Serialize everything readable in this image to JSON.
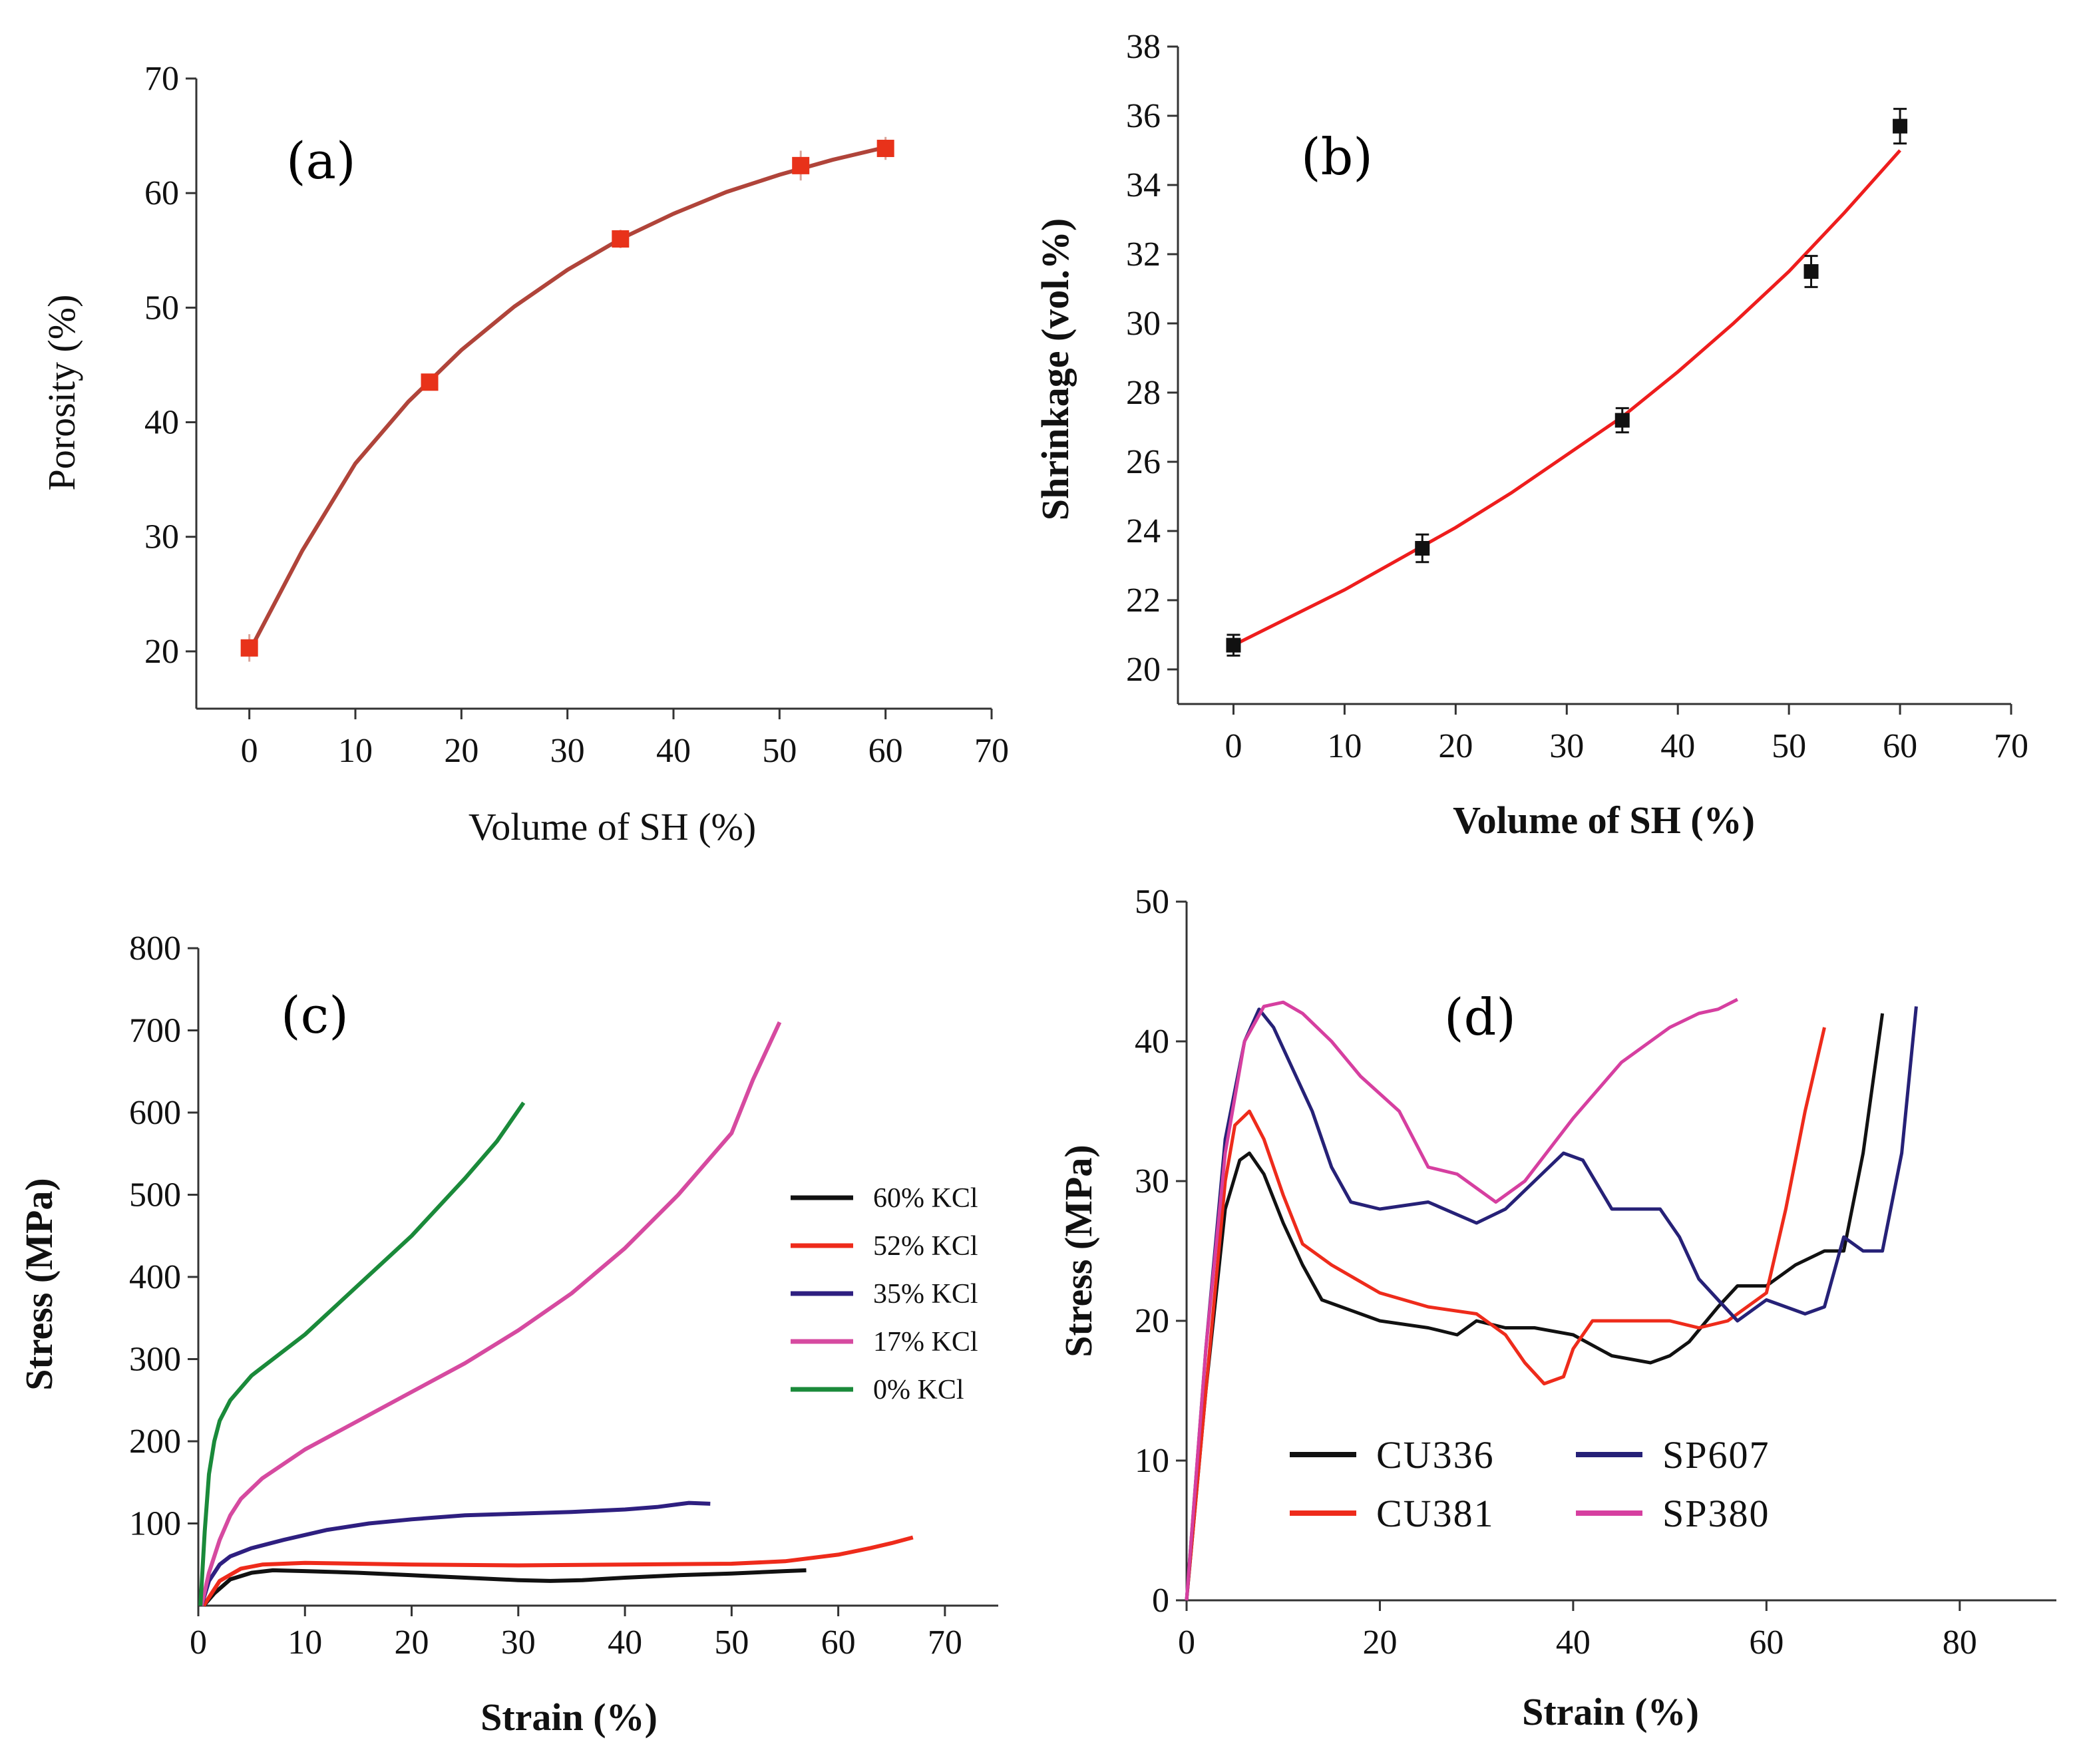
{
  "chart_data": [
    {
      "id": "a",
      "type": "scatter",
      "panel_label": "(a)",
      "xlabel": "Volume of SH (%)",
      "ylabel": "Porosity (%)",
      "xlim": [
        -5,
        70
      ],
      "ylim": [
        15,
        70
      ],
      "xticks": [
        0,
        10,
        20,
        30,
        40,
        50,
        60,
        70
      ],
      "yticks": [
        20,
        30,
        40,
        50,
        60,
        70
      ],
      "series": [
        {
          "name": "Porosity",
          "color": "#e8321a",
          "fit_color": "#b0443a",
          "marker": "square",
          "x": [
            0,
            17,
            35,
            52,
            60
          ],
          "y": [
            20.3,
            43.5,
            56.0,
            62.4,
            63.9
          ],
          "err": [
            1.2,
            0.6,
            0.8,
            1.3,
            1.0
          ],
          "fit_x": [
            0,
            5,
            10,
            15,
            20,
            25,
            30,
            35,
            40,
            45,
            50,
            55,
            60
          ],
          "fit_y": [
            20.0,
            28.8,
            36.4,
            41.8,
            46.3,
            50.1,
            53.3,
            56.0,
            58.2,
            60.1,
            61.6,
            62.9,
            64.0
          ]
        }
      ]
    },
    {
      "id": "b",
      "type": "scatter",
      "panel_label": "(b)",
      "xlabel": "Volume of SH (%)",
      "ylabel": "Shrinkage  (vol.%)",
      "xlim": [
        -5,
        70
      ],
      "ylim": [
        19,
        38
      ],
      "xticks": [
        0,
        10,
        20,
        30,
        40,
        50,
        60,
        70
      ],
      "yticks": [
        20,
        22,
        24,
        26,
        28,
        30,
        32,
        34,
        36,
        38
      ],
      "series": [
        {
          "name": "Shrinkage",
          "color": "#111111",
          "fit_color": "#ee1d1d",
          "marker": "square",
          "x": [
            0,
            17,
            35,
            52,
            60
          ],
          "y": [
            20.7,
            23.5,
            27.2,
            31.5,
            35.7
          ],
          "err": [
            0.3,
            0.4,
            0.35,
            0.45,
            0.5
          ],
          "fit_x": [
            0,
            5,
            10,
            15,
            20,
            25,
            30,
            35,
            40,
            45,
            50,
            55,
            60
          ],
          "fit_y": [
            20.7,
            21.5,
            22.3,
            23.2,
            24.1,
            25.1,
            26.2,
            27.3,
            28.6,
            30.0,
            31.5,
            33.2,
            35.0
          ]
        }
      ]
    },
    {
      "id": "c",
      "type": "line",
      "panel_label": "(c)",
      "xlabel": "Strain (%)",
      "ylabel": "Stress (MPa)",
      "xlim": [
        0,
        75
      ],
      "ylim": [
        0,
        800
      ],
      "xticks": [
        0,
        10,
        20,
        30,
        40,
        50,
        60,
        70
      ],
      "yticks": [
        100,
        200,
        300,
        400,
        500,
        600,
        700,
        800
      ],
      "legend": "right",
      "series": [
        {
          "name": "60% KCl",
          "color": "#111111",
          "x": [
            0.5,
            1.5,
            3,
            5,
            7,
            10,
            15,
            20,
            25,
            30,
            33,
            36,
            40,
            45,
            50,
            55,
            57
          ],
          "y": [
            0,
            15,
            32,
            40,
            43,
            42,
            40,
            37,
            34,
            31,
            30,
            31,
            34,
            37,
            39,
            42,
            43
          ]
        },
        {
          "name": "52% KCl",
          "color": "#ee2b1b",
          "x": [
            0.5,
            2,
            4,
            6,
            10,
            15,
            20,
            30,
            40,
            50,
            55,
            60,
            63,
            65,
            67
          ],
          "y": [
            0,
            30,
            45,
            50,
            52,
            51,
            50,
            49,
            50,
            51,
            54,
            62,
            70,
            76,
            83
          ]
        },
        {
          "name": "35% KCl",
          "color": "#2e1f80",
          "x": [
            0.3,
            1,
            2,
            3,
            5,
            8,
            12,
            16,
            20,
            25,
            30,
            35,
            40,
            43,
            46,
            48
          ],
          "y": [
            0,
            30,
            50,
            60,
            70,
            80,
            92,
            100,
            105,
            110,
            112,
            114,
            117,
            120,
            125,
            124
          ]
        },
        {
          "name": "17% KCl",
          "color": "#d64aa0",
          "x": [
            0.3,
            1,
            2,
            3,
            4,
            6,
            10,
            15,
            20,
            25,
            30,
            35,
            40,
            45,
            50,
            52,
            54.5
          ],
          "y": [
            0,
            40,
            80,
            110,
            130,
            155,
            190,
            225,
            260,
            295,
            335,
            380,
            435,
            500,
            575,
            640,
            710
          ]
        },
        {
          "name": "0% KCl",
          "color": "#1a8a3a",
          "x": [
            0.2,
            0.6,
            1,
            1.5,
            2,
            3,
            4,
            5,
            7,
            10,
            15,
            20,
            25,
            28,
            30.5
          ],
          "y": [
            0,
            90,
            160,
            200,
            225,
            250,
            265,
            280,
            300,
            330,
            390,
            450,
            520,
            565,
            612
          ]
        }
      ]
    },
    {
      "id": "d",
      "type": "line",
      "panel_label": "(d)",
      "xlabel": "Strain (%)",
      "ylabel": "Stress (MPa)",
      "xlim": [
        0,
        90
      ],
      "ylim": [
        0,
        50
      ],
      "xticks": [
        0,
        20,
        40,
        60,
        80
      ],
      "yticks": [
        0,
        10,
        20,
        30,
        40,
        50
      ],
      "legend": "bottom-left",
      "series": [
        {
          "name": "CU336",
          "color": "#111111",
          "x": [
            0,
            2,
            4,
            5.5,
            6.5,
            8,
            10,
            12,
            14,
            16,
            18,
            20,
            25,
            28,
            30,
            33,
            36,
            40,
            44,
            48,
            50,
            52,
            55,
            57,
            60,
            63,
            66,
            68,
            70,
            72
          ],
          "y": [
            0,
            15,
            28,
            31.5,
            32,
            30.5,
            27,
            24,
            21.5,
            21,
            20.5,
            20,
            19.5,
            19,
            20,
            19.5,
            19.5,
            19,
            17.5,
            17,
            17.5,
            18.5,
            21,
            22.5,
            22.5,
            24,
            25,
            25,
            32,
            42
          ]
        },
        {
          "name": "CU381",
          "color": "#ee2b1b",
          "x": [
            0,
            2,
            4,
            5,
            6.5,
            8,
            10,
            12,
            15,
            20,
            25,
            30,
            33,
            35,
            37,
            39,
            40,
            42,
            45,
            50,
            53,
            56,
            60,
            62,
            64,
            66
          ],
          "y": [
            0,
            15,
            30,
            34,
            35,
            33,
            29,
            25.5,
            24,
            22,
            21,
            20.5,
            19,
            17,
            15.5,
            16,
            18,
            20,
            20,
            20,
            19.5,
            20,
            22,
            28,
            35,
            41
          ]
        },
        {
          "name": "SP607",
          "color": "#262177",
          "x": [
            0,
            2,
            4,
            6,
            7.5,
            9,
            11,
            13,
            15,
            17,
            20,
            25,
            30,
            33,
            36,
            39,
            41,
            44,
            46,
            49,
            51,
            53,
            55,
            57,
            60,
            64,
            66,
            68,
            70,
            72,
            74,
            75.5
          ],
          "y": [
            0,
            18,
            33,
            40,
            42.3,
            41,
            38,
            35,
            31,
            28.5,
            28,
            28.5,
            27,
            28,
            30,
            32,
            31.5,
            28,
            28,
            28,
            26,
            23,
            21.5,
            20,
            21.5,
            20.5,
            21,
            26,
            25,
            25,
            32,
            42.5
          ]
        },
        {
          "name": "SP380",
          "color": "#d63fa0",
          "x": [
            0,
            2,
            4,
            6,
            8,
            10,
            12,
            15,
            18,
            22,
            25,
            28,
            32,
            35,
            40,
            45,
            50,
            53,
            55,
            57
          ],
          "y": [
            0,
            18,
            32,
            40,
            42.5,
            42.8,
            42,
            40,
            37.5,
            35,
            31,
            30.5,
            28.5,
            30,
            34.5,
            38.5,
            41,
            42,
            42.3,
            43
          ]
        }
      ]
    }
  ]
}
